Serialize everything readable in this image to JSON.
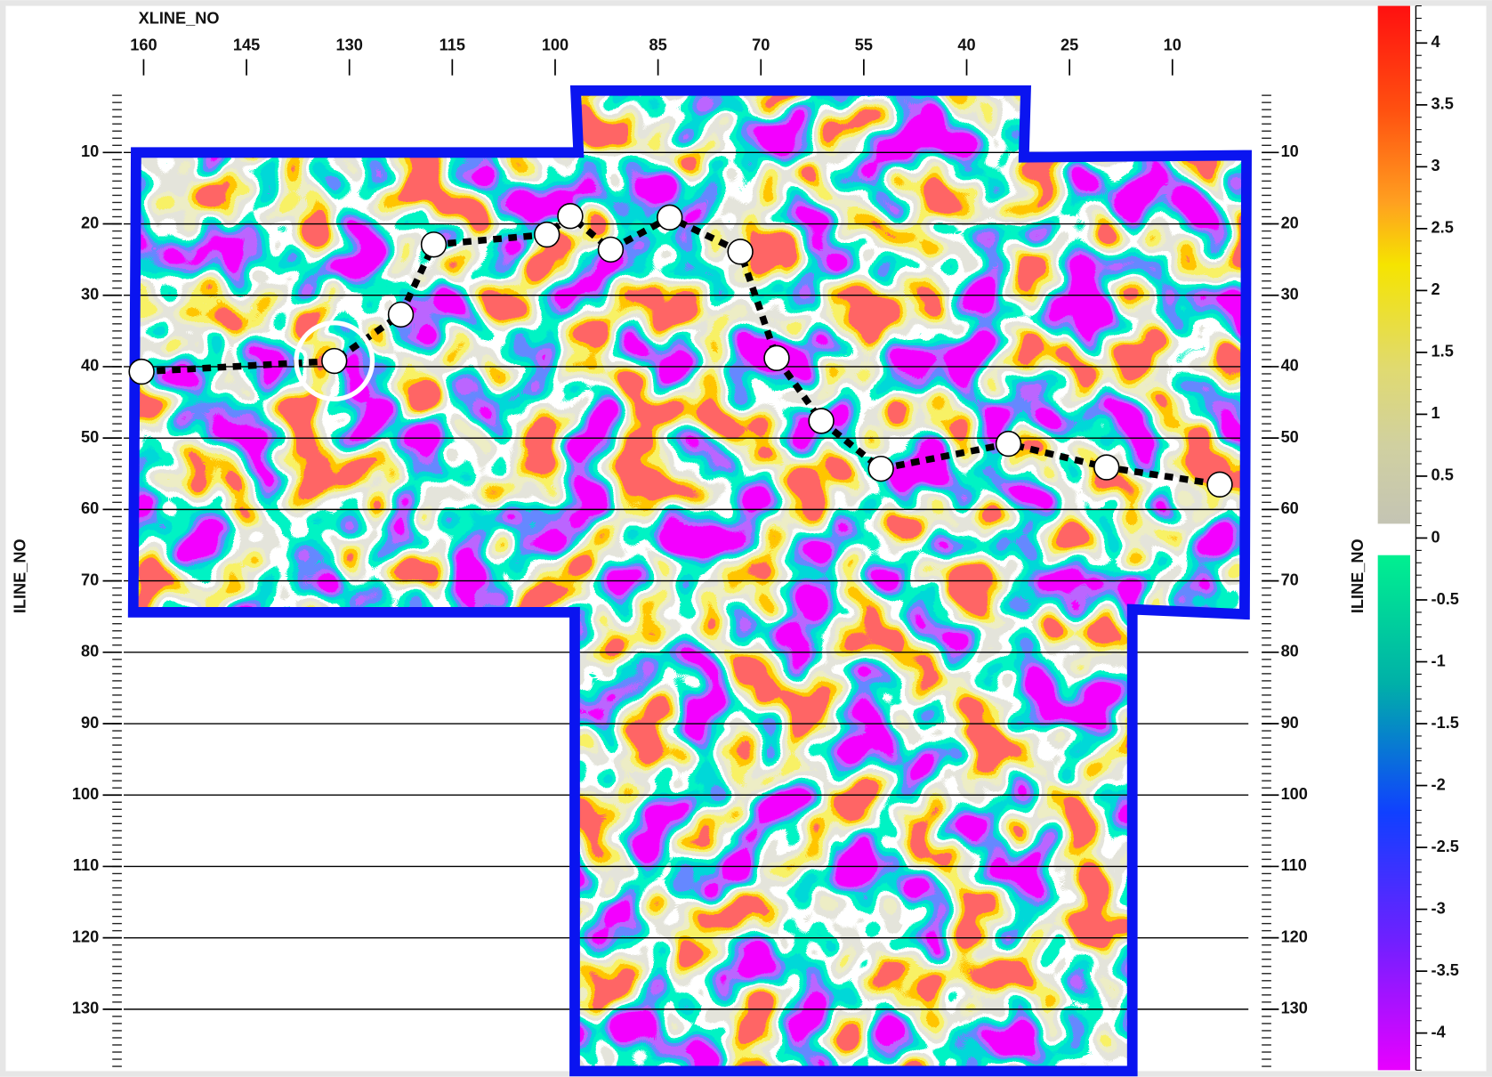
{
  "chart_data": {
    "type": "line",
    "x_label": "XLINE_NO",
    "y_label": "ILINE_NO",
    "xlim": [
      163.6,
      -3.3
    ],
    "ylim": [
      1.6,
      138
    ],
    "xticks": [
      160,
      145,
      130,
      115,
      100,
      85,
      70,
      55,
      40,
      25,
      10
    ],
    "yticks": [
      10,
      20,
      30,
      40,
      50,
      60,
      70,
      80,
      90,
      100,
      110,
      120,
      130
    ],
    "grid": true,
    "color": "#000000",
    "highlight_index": 1,
    "x": [
      160.3,
      132.2,
      122.5,
      117.7,
      101.2,
      97.8,
      91.9,
      83.3,
      73.0,
      67.7,
      61.2,
      52.5,
      33.9,
      19.6,
      3.1
    ],
    "values": [
      40.7,
      39.2,
      32.7,
      22.9,
      21.5,
      18.9,
      23.6,
      19.1,
      23.9,
      38.8,
      47.6,
      54.3,
      50.8,
      54.1,
      56.5
    ],
    "colorbar": {
      "clim": [
        -4.3,
        4.3
      ],
      "ticks": [
        4,
        3.5,
        3,
        2.5,
        2,
        1.5,
        1,
        0.5,
        0,
        -0.5,
        -1,
        -1.5,
        -2,
        -2.5,
        -3,
        -3.5,
        -4
      ]
    }
  }
}
